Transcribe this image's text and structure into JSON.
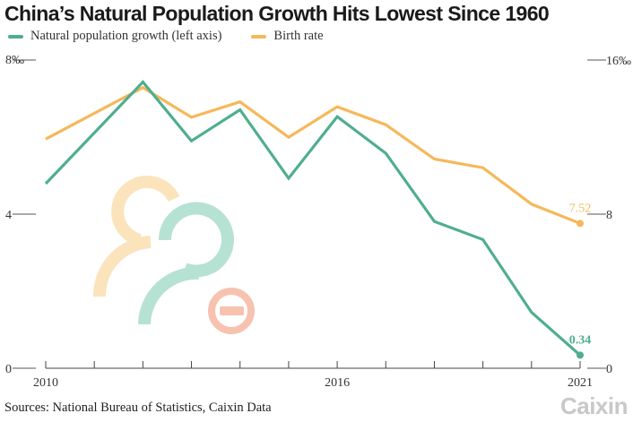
{
  "title": "China’s Natural Population Growth Hits Lowest Since 1960",
  "legend": [
    {
      "label": "Natural population growth (left axis)",
      "color": "#4fae90"
    },
    {
      "label": "Birth rate",
      "color": "#f5b85a"
    }
  ],
  "source": "Sources: National Bureau of Statistics, Caixin Data",
  "brand": "Caixin",
  "chart_data": {
    "type": "line",
    "x": [
      2010,
      2011,
      2012,
      2013,
      2014,
      2015,
      2016,
      2017,
      2018,
      2019,
      2020,
      2021
    ],
    "x_tick_labels": [
      "2010",
      "2016",
      "2021"
    ],
    "series": [
      {
        "name": "Natural population growth (left axis)",
        "axis": "left",
        "color": "#4fae90",
        "values": [
          4.79,
          7.43,
          5.9,
          6.71,
          4.93,
          6.53,
          5.58,
          3.81,
          3.34,
          1.45,
          0.34
        ],
        "x": [
          2010,
          2012,
          2013,
          2014,
          2015,
          2016,
          2017,
          2018,
          2019,
          2020,
          2021
        ],
        "end_label": "0.34"
      },
      {
        "name": "Birth rate",
        "axis": "right",
        "color": "#f5b85a",
        "values": [
          11.9,
          14.57,
          13.03,
          13.83,
          11.99,
          13.57,
          12.64,
          10.86,
          10.41,
          8.52,
          7.52
        ],
        "x": [
          2010,
          2012,
          2013,
          2014,
          2015,
          2016,
          2017,
          2018,
          2019,
          2020,
          2021
        ],
        "end_label": "7.52"
      }
    ],
    "y_left": {
      "ticks": [
        "0",
        "4",
        "8‰"
      ],
      "range": [
        0,
        8
      ]
    },
    "y_right": {
      "ticks": [
        "0",
        "8",
        "16‰"
      ],
      "range": [
        0,
        16
      ]
    },
    "grid": false
  }
}
